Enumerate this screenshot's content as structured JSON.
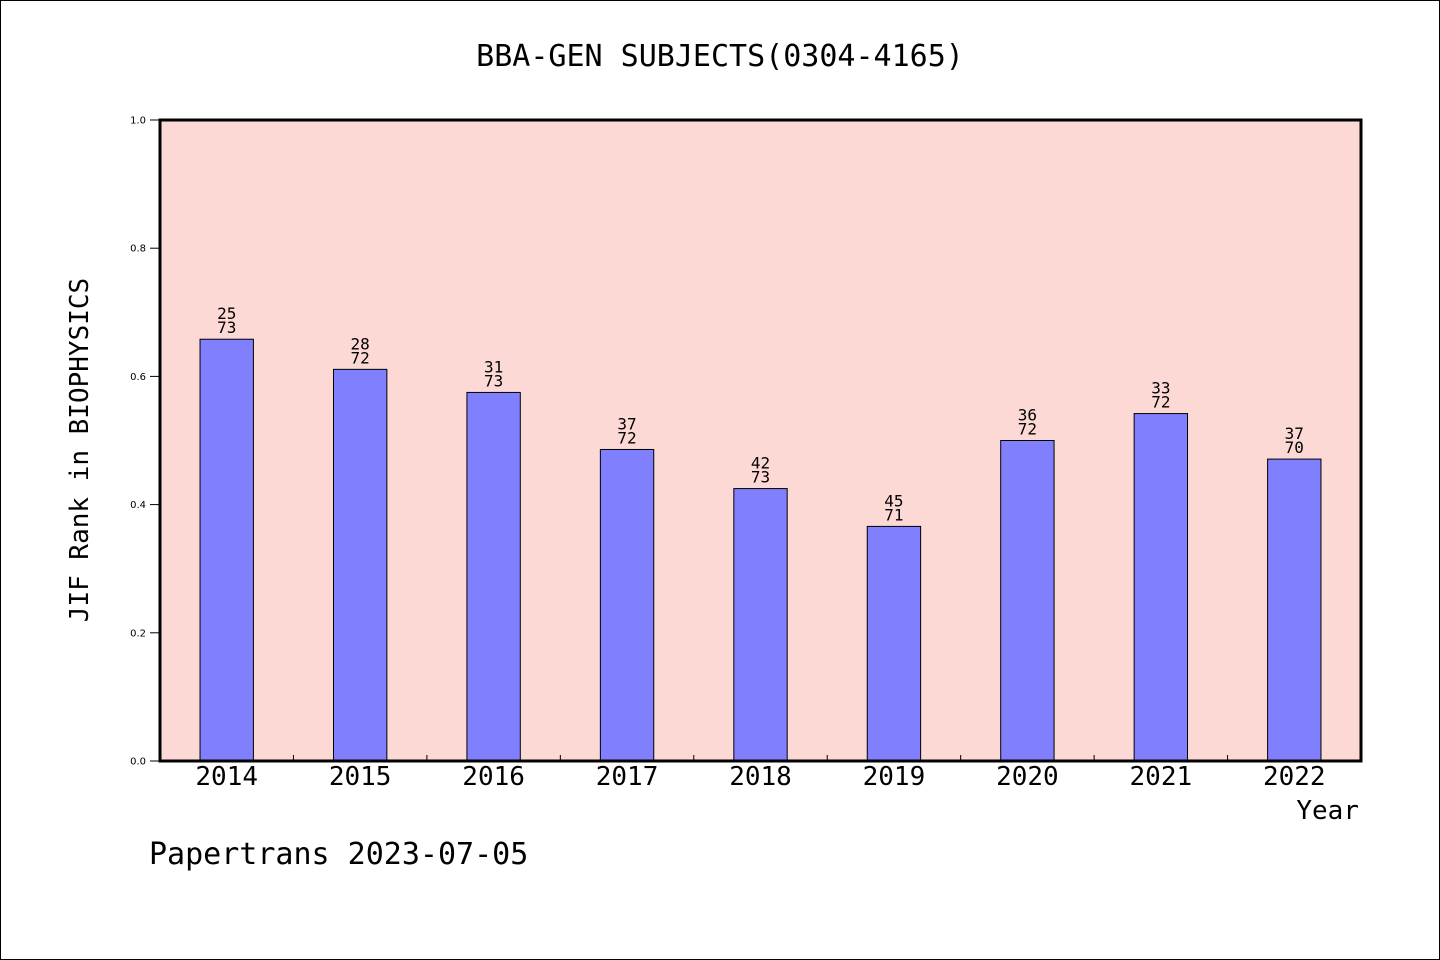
{
  "chart_data": {
    "type": "bar",
    "title": "BBA-GEN SUBJECTS(0304-4165)",
    "xlabel": "Year",
    "ylabel": "JIF Rank in BIOPHYSICS",
    "ylim": [
      0,
      1.0
    ],
    "yticks": [
      "0.0",
      "0.2",
      "0.4",
      "0.6",
      "0.8",
      "1.0"
    ],
    "categories": [
      "2014",
      "2015",
      "2016",
      "2017",
      "2018",
      "2019",
      "2020",
      "2021",
      "2022"
    ],
    "values": [
      0.658,
      0.611,
      0.575,
      0.486,
      0.425,
      0.366,
      0.5,
      0.542,
      0.471
    ],
    "bar_labels": [
      {
        "rank": "25",
        "total": "73"
      },
      {
        "rank": "28",
        "total": "72"
      },
      {
        "rank": "31",
        "total": "73"
      },
      {
        "rank": "37",
        "total": "72"
      },
      {
        "rank": "42",
        "total": "73"
      },
      {
        "rank": "45",
        "total": "71"
      },
      {
        "rank": "36",
        "total": "72"
      },
      {
        "rank": "33",
        "total": "72"
      },
      {
        "rank": "37",
        "total": "70"
      }
    ],
    "grid": false,
    "colors": {
      "plot_background": "#fdd9d6",
      "bar_fill": "#8080ff",
      "bar_stroke": "#000000"
    }
  },
  "footer": {
    "text": "Papertrans 2023-07-05"
  }
}
